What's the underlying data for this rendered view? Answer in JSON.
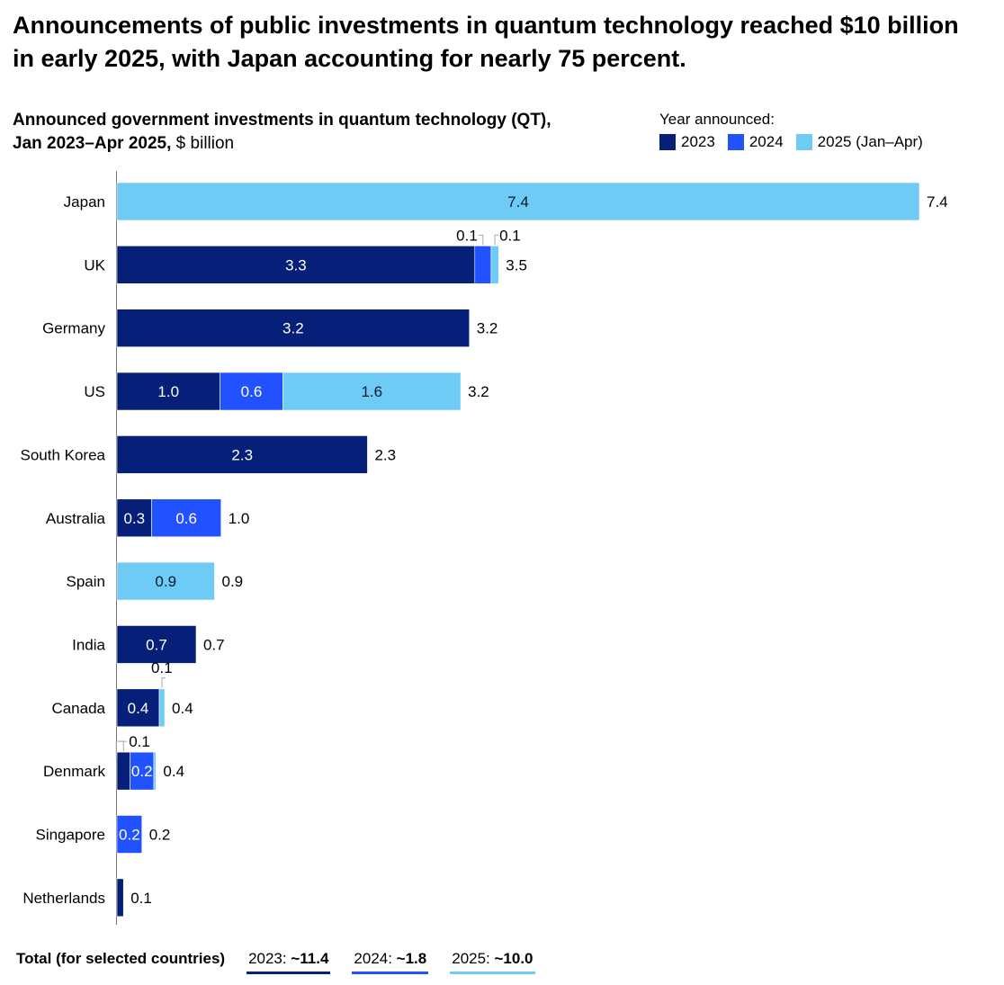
{
  "title": "Announcements of public investments in quantum technology reached $10 billion in early 2025, with Japan accounting for nearly 75 percent.",
  "subtitle_bold_1": "Announced government investments in quantum technology (QT),",
  "subtitle_bold_2": "Jan 2023–Apr 2025,",
  "subtitle_unit": " $ billion",
  "colors": {
    "2023": "#061f79",
    "2024": "#2251ff",
    "2025": "#6ecbf6",
    "axis": "#777777"
  },
  "chart_data": {
    "type": "bar",
    "orientation": "horizontal",
    "stacked": true,
    "title": "Announced government investments in quantum technology (QT), Jan 2023–Apr 2025, $ billion",
    "legend_title": "Year announced:",
    "legend_position": "top-right",
    "series": [
      {
        "key": "2023",
        "name": "2023"
      },
      {
        "key": "2024",
        "name": "2024"
      },
      {
        "key": "2025",
        "name": "2025 (Jan–Apr)"
      }
    ],
    "categories": [
      "Japan",
      "UK",
      "Germany",
      "US",
      "South Korea",
      "Australia",
      "Spain",
      "India",
      "Canada",
      "Denmark",
      "Singapore",
      "Netherlands"
    ],
    "rows": [
      {
        "country": "Japan",
        "segments": [
          {
            "s": "2025",
            "v": 7.4,
            "label": "7.4",
            "pos": "inside"
          }
        ],
        "total": "7.4"
      },
      {
        "country": "UK",
        "segments": [
          {
            "s": "2023",
            "v": 3.3,
            "label": "3.3",
            "pos": "inside"
          },
          {
            "s": "2024",
            "v": 0.15,
            "label": "0.1",
            "pos": "above-left"
          },
          {
            "s": "2025",
            "v": 0.07,
            "label": "0.1",
            "pos": "above-right"
          }
        ],
        "total": "3.5"
      },
      {
        "country": "Germany",
        "segments": [
          {
            "s": "2023",
            "v": 3.25,
            "label": "3.2",
            "pos": "inside"
          }
        ],
        "total": "3.2"
      },
      {
        "country": "US",
        "segments": [
          {
            "s": "2023",
            "v": 0.95,
            "label": "1.0",
            "pos": "inside"
          },
          {
            "s": "2024",
            "v": 0.58,
            "label": "0.6",
            "pos": "inside"
          },
          {
            "s": "2025",
            "v": 1.64,
            "label": "1.6",
            "pos": "inside"
          }
        ],
        "total": "3.2"
      },
      {
        "country": "South Korea",
        "segments": [
          {
            "s": "2023",
            "v": 2.31,
            "label": "2.3",
            "pos": "inside"
          }
        ],
        "total": "2.3"
      },
      {
        "country": "Australia",
        "segments": [
          {
            "s": "2023",
            "v": 0.32,
            "label": "0.3",
            "pos": "inside"
          },
          {
            "s": "2024",
            "v": 0.64,
            "label": "0.6",
            "pos": "inside"
          }
        ],
        "total": "1.0"
      },
      {
        "country": "Spain",
        "segments": [
          {
            "s": "2025",
            "v": 0.9,
            "label": "0.9",
            "pos": "inside"
          }
        ],
        "total": "0.9"
      },
      {
        "country": "India",
        "segments": [
          {
            "s": "2023",
            "v": 0.73,
            "label": "0.7",
            "pos": "inside"
          }
        ],
        "total": "0.7"
      },
      {
        "country": "Canada",
        "segments": [
          {
            "s": "2023",
            "v": 0.39,
            "label": "0.4",
            "pos": "inside"
          },
          {
            "s": "2025",
            "v": 0.05,
            "label": "0.1",
            "pos": "above-right"
          }
        ],
        "total": "0.4"
      },
      {
        "country": "Denmark",
        "segments": [
          {
            "s": "2023",
            "v": 0.12,
            "label": "0.1",
            "pos": "above-left"
          },
          {
            "s": "2024",
            "v": 0.22,
            "label": "0.2",
            "pos": "inside"
          },
          {
            "s": "2025",
            "v": 0.02,
            "label": "",
            "pos": "none"
          }
        ],
        "total": "0.4"
      },
      {
        "country": "Singapore",
        "segments": [
          {
            "s": "2024",
            "v": 0.23,
            "label": "0.2",
            "pos": "inside"
          }
        ],
        "total": "0.2"
      },
      {
        "country": "Netherlands",
        "segments": [
          {
            "s": "2023",
            "v": 0.06,
            "label": "",
            "pos": "none"
          }
        ],
        "total": "0.1"
      }
    ],
    "xlim": [
      0,
      7.4
    ],
    "grid": false
  },
  "footer": {
    "label": "Total (for selected countries)",
    "totals": [
      {
        "year": "2023:",
        "value": "~11.4",
        "s": "2023"
      },
      {
        "year": "2024:",
        "value": "~1.8",
        "s": "2024"
      },
      {
        "year": "2025:",
        "value": "~10.0",
        "s": "2025"
      }
    ]
  }
}
